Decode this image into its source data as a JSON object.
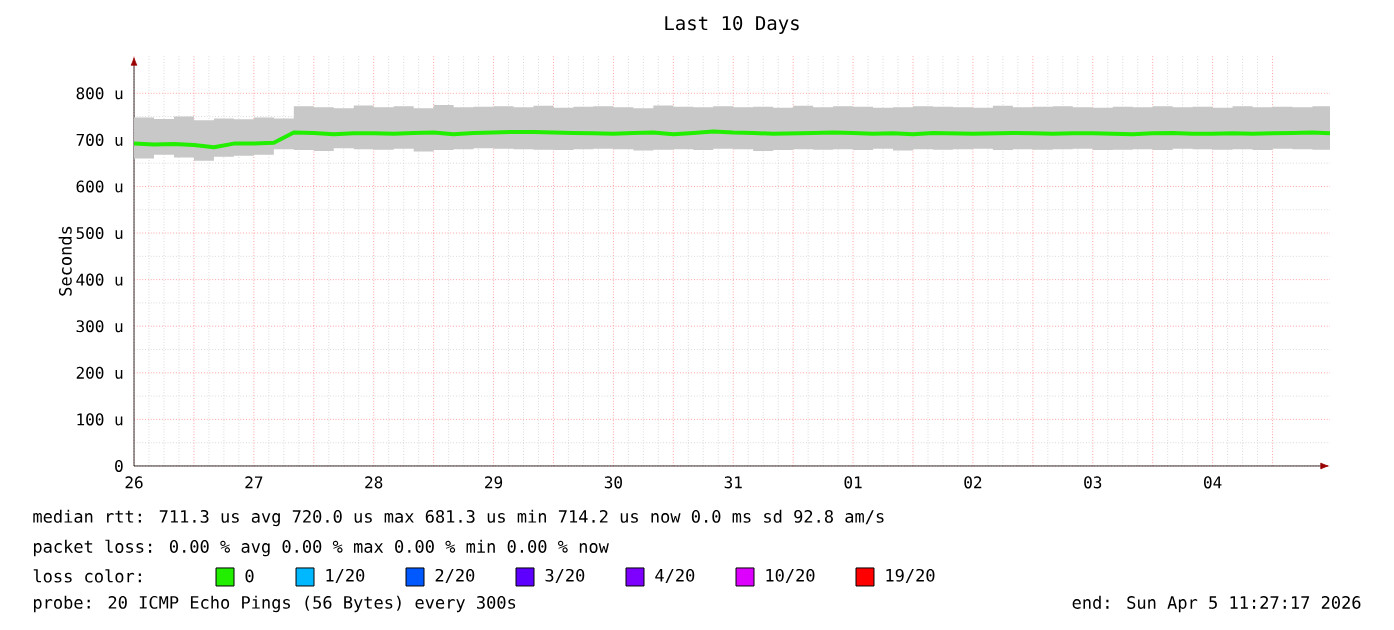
{
  "chart_data": {
    "type": "line",
    "title": "Last 10 Days",
    "ylabel": "Seconds",
    "x": [
      "2026-03-26T00:00",
      "2026-03-26T04:00",
      "2026-03-26T08:00",
      "2026-03-26T12:00",
      "2026-03-26T16:00",
      "2026-03-26T20:00",
      "2026-03-27T00:00",
      "2026-03-27T04:00",
      "2026-03-27T08:00",
      "2026-03-27T12:00",
      "2026-03-27T16:00",
      "2026-03-27T20:00",
      "2026-03-28T00:00",
      "2026-03-28T04:00",
      "2026-03-28T08:00",
      "2026-03-28T12:00",
      "2026-03-28T16:00",
      "2026-03-28T20:00",
      "2026-03-29T00:00",
      "2026-03-29T04:00",
      "2026-03-29T08:00",
      "2026-03-29T12:00",
      "2026-03-29T16:00",
      "2026-03-29T20:00",
      "2026-03-30T00:00",
      "2026-03-30T04:00",
      "2026-03-30T08:00",
      "2026-03-30T12:00",
      "2026-03-30T16:00",
      "2026-03-30T20:00",
      "2026-03-31T00:00",
      "2026-03-31T04:00",
      "2026-03-31T08:00",
      "2026-03-31T12:00",
      "2026-03-31T16:00",
      "2026-03-31T20:00",
      "2026-04-01T00:00",
      "2026-04-01T04:00",
      "2026-04-01T08:00",
      "2026-04-01T12:00",
      "2026-04-01T16:00",
      "2026-04-01T20:00",
      "2026-04-02T00:00",
      "2026-04-02T04:00",
      "2026-04-02T08:00",
      "2026-04-02T12:00",
      "2026-04-02T16:00",
      "2026-04-02T20:00",
      "2026-04-03T00:00",
      "2026-04-03T04:00",
      "2026-04-03T08:00",
      "2026-04-03T12:00",
      "2026-04-03T16:00",
      "2026-04-03T20:00",
      "2026-04-04T00:00",
      "2026-04-04T04:00",
      "2026-04-04T08:00",
      "2026-04-04T12:00",
      "2026-04-04T16:00",
      "2026-04-04T20:00",
      "2026-04-04T23:30"
    ],
    "series": [
      {
        "name": "0",
        "color": "#22ee00",
        "values": [
          692,
          690,
          691,
          689,
          684,
          692,
          692,
          694,
          716,
          715,
          712,
          714,
          714,
          713,
          715,
          716,
          712,
          715,
          716,
          717,
          717,
          716,
          715,
          714,
          713,
          715,
          716,
          712,
          715,
          718,
          716,
          715,
          713,
          714,
          715,
          716,
          715,
          713,
          714,
          712,
          715,
          714,
          713,
          714,
          715,
          714,
          713,
          714,
          714,
          713,
          712,
          714,
          715,
          713,
          713,
          714,
          713,
          714,
          715,
          716,
          714
        ],
        "lower": [
          665,
          660,
          668,
          662,
          655,
          664,
          666,
          668,
          680,
          678,
          676,
          682,
          680,
          679,
          681,
          675,
          678,
          680,
          682,
          681,
          680,
          679,
          678,
          680,
          681,
          680,
          677,
          679,
          680,
          678,
          681,
          680,
          676,
          678,
          680,
          679,
          680,
          678,
          681,
          677,
          680,
          679,
          680,
          681,
          678,
          680,
          679,
          680,
          681,
          678,
          679,
          680,
          678,
          681,
          680,
          679,
          680,
          678,
          681,
          680,
          679
        ],
        "upper": [
          748,
          745,
          750,
          742,
          746,
          744,
          748,
          746,
          772,
          770,
          768,
          774,
          770,
          772,
          768,
          775,
          770,
          771,
          772,
          770,
          773,
          769,
          771,
          772,
          770,
          768,
          774,
          771,
          770,
          772,
          770,
          771,
          769,
          773,
          770,
          772,
          771,
          769,
          770,
          772,
          771,
          770,
          769,
          773,
          770,
          771,
          772,
          770,
          769,
          771,
          770,
          772,
          770,
          771,
          769,
          772,
          770,
          771,
          770,
          772,
          771
        ]
      },
      {
        "name": "1/20",
        "color": "#00b8ff",
        "values": [
          null,
          null,
          null,
          null,
          null,
          null,
          null,
          null,
          null,
          null,
          null,
          null,
          null,
          null,
          null,
          null,
          null,
          null,
          null,
          null,
          null,
          null,
          null,
          null,
          null,
          null,
          null,
          null,
          null,
          null,
          null,
          null,
          null,
          null,
          null,
          null,
          null,
          null,
          null,
          null,
          null,
          null,
          null,
          null,
          null,
          null,
          null,
          null,
          null,
          null,
          null,
          null,
          null,
          null,
          null,
          null,
          null,
          null,
          null,
          null,
          null
        ]
      },
      {
        "name": "2/20",
        "color": "#0059ff",
        "values": [
          null,
          null,
          null,
          null,
          null,
          null,
          null,
          null,
          null,
          null,
          null,
          null,
          null,
          null,
          null,
          null,
          null,
          null,
          null,
          null,
          null,
          null,
          null,
          null,
          null,
          null,
          null,
          null,
          null,
          null,
          null,
          null,
          null,
          null,
          null,
          null,
          null,
          null,
          null,
          null,
          null,
          null,
          null,
          null,
          null,
          null,
          null,
          null,
          null,
          null,
          null,
          null,
          null,
          null,
          null,
          null,
          null,
          null,
          null,
          null,
          null
        ]
      },
      {
        "name": "3/20",
        "color": "#5e00ff",
        "values": [
          null,
          null,
          null,
          null,
          null,
          null,
          null,
          null,
          null,
          null,
          null,
          null,
          null,
          null,
          null,
          null,
          null,
          null,
          null,
          null,
          null,
          null,
          null,
          null,
          null,
          null,
          null,
          null,
          null,
          null,
          null,
          null,
          null,
          null,
          null,
          null,
          null,
          null,
          null,
          null,
          null,
          null,
          null,
          null,
          null,
          null,
          null,
          null,
          null,
          null,
          null,
          null,
          null,
          null,
          null,
          null,
          null,
          null,
          null,
          null,
          null
        ]
      },
      {
        "name": "4/20",
        "color": "#7e00ff",
        "values": [
          null,
          null,
          null,
          null,
          null,
          null,
          null,
          null,
          null,
          null,
          null,
          null,
          null,
          null,
          null,
          null,
          null,
          null,
          null,
          null,
          null,
          null,
          null,
          null,
          null,
          null,
          null,
          null,
          null,
          null,
          null,
          null,
          null,
          null,
          null,
          null,
          null,
          null,
          null,
          null,
          null,
          null,
          null,
          null,
          null,
          null,
          null,
          null,
          null,
          null,
          null,
          null,
          null,
          null,
          null,
          null,
          null,
          null,
          null,
          null,
          null
        ]
      },
      {
        "name": "10/20",
        "color": "#dd00ff",
        "values": [
          null,
          null,
          null,
          null,
          null,
          null,
          null,
          null,
          null,
          null,
          null,
          null,
          null,
          null,
          null,
          null,
          null,
          null,
          null,
          null,
          null,
          null,
          null,
          null,
          null,
          null,
          null,
          null,
          null,
          null,
          null,
          null,
          null,
          null,
          null,
          null,
          null,
          null,
          null,
          null,
          null,
          null,
          null,
          null,
          null,
          null,
          null,
          null,
          null,
          null,
          null,
          null,
          null,
          null,
          null,
          null,
          null,
          null,
          null,
          null,
          null
        ]
      },
      {
        "name": "19/20",
        "color": "#ff0000",
        "values": [
          null,
          null,
          null,
          null,
          null,
          null,
          null,
          null,
          null,
          null,
          null,
          null,
          null,
          null,
          null,
          null,
          null,
          null,
          null,
          null,
          null,
          null,
          null,
          null,
          null,
          null,
          null,
          null,
          null,
          null,
          null,
          null,
          null,
          null,
          null,
          null,
          null,
          null,
          null,
          null,
          null,
          null,
          null,
          null,
          null,
          null,
          null,
          null,
          null,
          null,
          null,
          null,
          null,
          null,
          null,
          null,
          null,
          null,
          null,
          null,
          null
        ]
      }
    ],
    "xlim": [
      "2026-03-26T00:00",
      "2026-04-04T23:30"
    ],
    "xticks": [
      {
        "value": "2026-03-26T00:00",
        "label": "26"
      },
      {
        "value": "2026-03-26T12:00",
        "label": null
      },
      {
        "value": "2026-03-27T00:00",
        "label": "27"
      },
      {
        "value": "2026-03-27T12:00",
        "label": null
      },
      {
        "value": "2026-03-28T00:00",
        "label": "28"
      },
      {
        "value": "2026-03-28T12:00",
        "label": null
      },
      {
        "value": "2026-03-29T00:00",
        "label": "29"
      },
      {
        "value": "2026-03-29T12:00",
        "label": null
      },
      {
        "value": "2026-03-30T00:00",
        "label": "30"
      },
      {
        "value": "2026-03-30T12:00",
        "label": null
      },
      {
        "value": "2026-03-31T00:00",
        "label": "31"
      },
      {
        "value": "2026-03-31T12:00",
        "label": null
      },
      {
        "value": "2026-04-01T00:00",
        "label": "01"
      },
      {
        "value": "2026-04-01T12:00",
        "label": null
      },
      {
        "value": "2026-04-02T00:00",
        "label": "02"
      },
      {
        "value": "2026-04-02T12:00",
        "label": null
      },
      {
        "value": "2026-04-03T00:00",
        "label": "03"
      },
      {
        "value": "2026-04-03T12:00",
        "label": null
      },
      {
        "value": "2026-04-04T00:00",
        "label": "04"
      },
      {
        "value": "2026-04-04T12:00",
        "label": null
      }
    ],
    "ylim": [
      0,
      880
    ],
    "yticks": [
      0,
      {
        "value": 100,
        "label": "100 u"
      },
      {
        "value": 200,
        "label": "200 u"
      },
      {
        "value": 300,
        "label": "300 u"
      },
      {
        "value": 400,
        "label": "400 u"
      },
      {
        "value": 500,
        "label": "500 u"
      },
      {
        "value": 600,
        "label": "600 u"
      },
      {
        "value": 700,
        "label": "700 u"
      },
      {
        "value": 800,
        "label": "800 u"
      }
    ],
    "grid": true,
    "legend": "bottom",
    "marker": "none",
    "line_style": "solid",
    "annotations": [
      "median rtt:  711.3 us avg  720.0 us max  681.3 us min  714.2 us now  0.0 ms sd  92.8   am/s",
      "packet loss: 0.00 % avg  0.00 % max  0.00 % min  0.00 % now",
      "loss color:",
      "probe:       20 ICMP Echo Pings (56 Bytes) every 300s",
      "end: Sun Apr  5 11:27:17 2026"
    ]
  }
}
